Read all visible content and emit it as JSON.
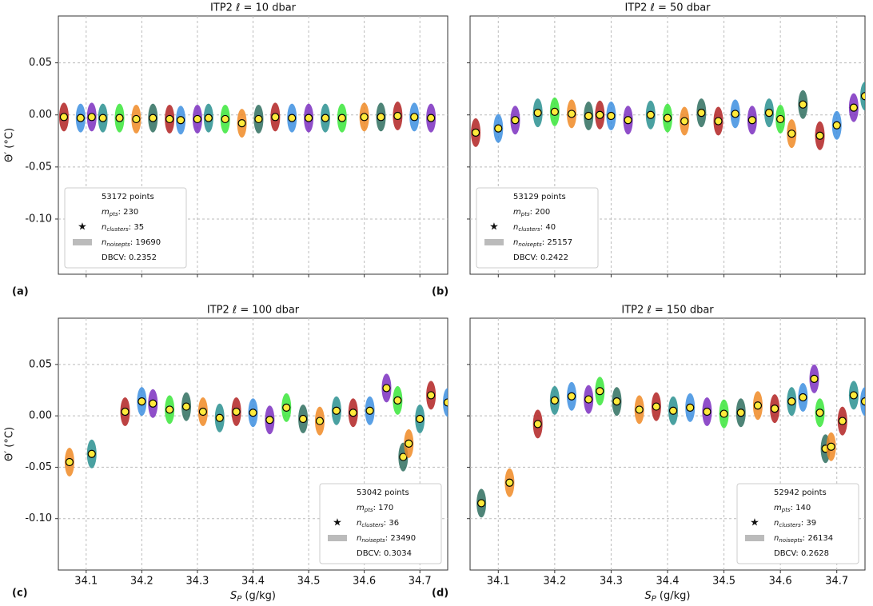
{
  "chart_data": [
    {
      "type": "scatter",
      "title": "ITP2 ℓ = 10 dbar",
      "panel_label": "(a)",
      "y_label": "Θ′ (°C)",
      "x": [
        34.06,
        34.09,
        34.11,
        34.13,
        34.16,
        34.19,
        34.22,
        34.25,
        34.27,
        34.3,
        34.32,
        34.35,
        34.38,
        34.41,
        34.44,
        34.47,
        34.5,
        34.53,
        34.56,
        34.6,
        34.63,
        34.66,
        34.69,
        34.72
      ],
      "values": [
        -0.002,
        -0.003,
        -0.002,
        -0.003,
        -0.003,
        -0.004,
        -0.003,
        -0.004,
        -0.005,
        -0.004,
        -0.003,
        -0.004,
        -0.008,
        -0.004,
        -0.002,
        -0.003,
        -0.003,
        -0.003,
        -0.003,
        -0.002,
        -0.002,
        -0.001,
        -0.002,
        -0.003
      ],
      "palette": [
        "#b22222",
        "#3d8fe0",
        "#7b2fbf",
        "#2a9090",
        "#39e639",
        "#f08a24",
        "#2f6f5f"
      ],
      "xlim": [
        34.05,
        34.75
      ],
      "ylim": [
        -0.153,
        0.095
      ],
      "xticks": [
        34.1,
        34.2,
        34.3,
        34.4,
        34.5,
        34.6,
        34.7
      ],
      "xticklabels": false,
      "yticks": [
        {
          "value": -0.1,
          "label": "-0.10"
        },
        {
          "value": -0.05,
          "label": "-0.05"
        },
        {
          "value": 0,
          "label": "0.00"
        },
        {
          "value": 0.05,
          "label": "0.05"
        }
      ],
      "yticklabels": true,
      "grid": true,
      "legend_corner": "lower left",
      "legend": {
        "points": "53172 points",
        "m": "m",
        "m_sub": "pts",
        "m_val": ": 230",
        "n": "n",
        "n_sub": "clusters",
        "n_val": ": 35",
        "noise": "n",
        "noise_sub": "noisepts",
        "noise_val": ": 19690",
        "dbcv": "DBCV: 0.2352"
      }
    },
    {
      "type": "scatter",
      "title": "ITP2 ℓ = 50 dbar",
      "panel_label": "(b)",
      "x": [
        34.06,
        34.1,
        34.13,
        34.17,
        34.2,
        34.23,
        34.26,
        34.28,
        34.3,
        34.33,
        34.37,
        34.4,
        34.43,
        34.46,
        34.49,
        34.52,
        34.55,
        34.58,
        34.6,
        34.62,
        34.64,
        34.67,
        34.7,
        34.73,
        34.75
      ],
      "values": [
        -0.017,
        -0.013,
        -0.005,
        0.002,
        0.003,
        0.001,
        -0.001,
        0.0,
        -0.001,
        -0.005,
        0.0,
        -0.003,
        -0.006,
        0.002,
        -0.006,
        0.001,
        -0.005,
        0.002,
        -0.004,
        -0.018,
        0.01,
        -0.02,
        -0.01,
        0.007,
        0.018
      ],
      "palette": [
        "#b22222",
        "#3d8fe0",
        "#7b2fbf",
        "#2a9090",
        "#39e639",
        "#f08a24",
        "#2f6f5f"
      ],
      "xlim": [
        34.05,
        34.75
      ],
      "ylim": [
        -0.153,
        0.095
      ],
      "xticks": [
        34.1,
        34.2,
        34.3,
        34.4,
        34.5,
        34.6,
        34.7
      ],
      "xticklabels": false,
      "yticks": [
        -0.1,
        -0.05,
        0,
        0.05
      ],
      "yticklabels": false,
      "grid": true,
      "legend_corner": "lower left",
      "legend": {
        "points": "53129 points",
        "m": "m",
        "m_sub": "pts",
        "m_val": ": 200",
        "n": "n",
        "n_sub": "clusters",
        "n_val": ": 40",
        "noise": "n",
        "noise_sub": "noisepts",
        "noise_val": ": 25157",
        "dbcv": "DBCV: 0.2422"
      }
    },
    {
      "type": "scatter",
      "title": "ITP2 ℓ = 100 dbar",
      "panel_label": "(c)",
      "y_label": "Θ′ (°C)",
      "x_label": "S",
      "x_label_sub": "P",
      "x_label_unit": " (g/kg)",
      "x": [
        34.07,
        34.11,
        34.17,
        34.2,
        34.22,
        34.25,
        34.28,
        34.31,
        34.34,
        34.37,
        34.4,
        34.43,
        34.46,
        34.49,
        34.52,
        34.55,
        34.58,
        34.61,
        34.64,
        34.66,
        34.67,
        34.68,
        34.7,
        34.72,
        34.75
      ],
      "values": [
        -0.045,
        -0.037,
        0.004,
        0.014,
        0.012,
        0.006,
        0.009,
        0.004,
        -0.002,
        0.004,
        0.003,
        -0.004,
        0.008,
        -0.003,
        -0.005,
        0.005,
        0.003,
        0.005,
        0.027,
        0.015,
        -0.04,
        -0.027,
        -0.003,
        0.02,
        0.013
      ],
      "palette": [
        "#f08a24",
        "#2a9090",
        "#b22222",
        "#3d8fe0",
        "#7b2fbf",
        "#39e639",
        "#2f6f5f"
      ],
      "xlim": [
        34.05,
        34.75
      ],
      "ylim": [
        -0.15,
        0.095
      ],
      "xticks": [
        34.1,
        34.2,
        34.3,
        34.4,
        34.5,
        34.6,
        34.7
      ],
      "xticklabels": true,
      "yticks": [
        {
          "value": -0.1,
          "label": "-0.10"
        },
        {
          "value": -0.05,
          "label": "-0.05"
        },
        {
          "value": 0,
          "label": "0.00"
        },
        {
          "value": 0.05,
          "label": "0.05"
        }
      ],
      "yticklabels": true,
      "grid": true,
      "legend_corner": "lower right",
      "legend": {
        "points": "53042 points",
        "m": "m",
        "m_sub": "pts",
        "m_val": ": 170",
        "n": "n",
        "n_sub": "clusters",
        "n_val": ": 36",
        "noise": "n",
        "noise_sub": "noisepts",
        "noise_val": ": 23490",
        "dbcv": "DBCV: 0.3034"
      }
    },
    {
      "type": "scatter",
      "title": "ITP2 ℓ = 150 dbar",
      "panel_label": "(d)",
      "x_label": "S",
      "x_label_sub": "P",
      "x_label_unit": " (g/kg)",
      "x": [
        34.07,
        34.12,
        34.17,
        34.2,
        34.23,
        34.26,
        34.28,
        34.31,
        34.35,
        34.38,
        34.41,
        34.44,
        34.47,
        34.5,
        34.53,
        34.56,
        34.59,
        34.62,
        34.64,
        34.66,
        34.67,
        34.68,
        34.69,
        34.71,
        34.73,
        34.75
      ],
      "values": [
        -0.085,
        -0.065,
        -0.008,
        0.015,
        0.019,
        0.016,
        0.024,
        0.014,
        0.006,
        0.009,
        0.005,
        0.008,
        0.004,
        0.002,
        0.003,
        0.01,
        0.007,
        0.014,
        0.018,
        0.036,
        0.003,
        -0.032,
        -0.03,
        -0.005,
        0.02,
        0.014
      ],
      "palette": [
        "#2f6f5f",
        "#f08a24",
        "#b22222",
        "#2a9090",
        "#3d8fe0",
        "#7b2fbf",
        "#39e639"
      ],
      "xlim": [
        34.05,
        34.75
      ],
      "ylim": [
        -0.15,
        0.095
      ],
      "xticks": [
        34.1,
        34.2,
        34.3,
        34.4,
        34.5,
        34.6,
        34.7
      ],
      "xticklabels": true,
      "yticks": [
        -0.1,
        -0.05,
        0,
        0.05
      ],
      "yticklabels": false,
      "grid": true,
      "legend_corner": "lower right",
      "legend": {
        "points": "52942 points",
        "m": "m",
        "m_sub": "pts",
        "m_val": ": 140",
        "n": "n",
        "n_sub": "clusters",
        "n_val": ": 39",
        "noise": "n",
        "noise_sub": "noisepts",
        "noise_val": ": 26134",
        "dbcv": "DBCV: 0.2628"
      }
    }
  ]
}
